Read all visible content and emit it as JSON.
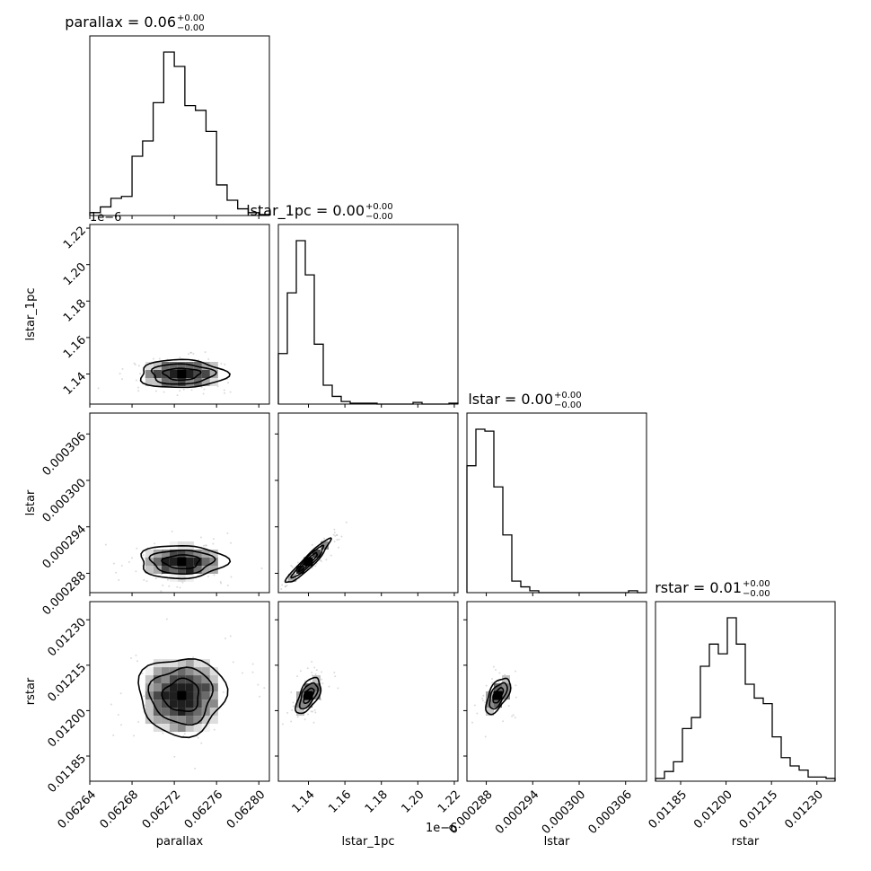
{
  "chart_data": {
    "type": "corner",
    "parameters": [
      "parallax",
      "lstar_1pc",
      "lstar",
      "rstar"
    ],
    "titles": [
      {
        "param": "parallax",
        "prefix": "parallax = 0.06",
        "upper": "+0.00",
        "lower": "−0.00"
      },
      {
        "param": "lstar_1pc",
        "prefix": "lstar_1pc = 0.00",
        "upper": "+0.00",
        "lower": "−0.00"
      },
      {
        "param": "lstar",
        "prefix": "lstar = 0.00",
        "upper": "+0.00",
        "lower": "−0.00"
      },
      {
        "param": "rstar",
        "prefix": "rstar = 0.01",
        "upper": "+0.00",
        "lower": "−0.00"
      }
    ],
    "xlabels": [
      "parallax",
      "lstar_1pc",
      "lstar",
      "rstar"
    ],
    "ylabels": [
      "",
      "lstar_1pc",
      "lstar",
      "rstar"
    ],
    "ranges": {
      "parallax": [
        0.06264,
        0.06281
      ],
      "lstar_1pc": [
        1.1235e-06,
        1.222e-06
      ],
      "lstar": [
        0.0002855,
        0.0003087
      ],
      "rstar": [
        0.011767,
        0.01236
      ]
    },
    "ticks": {
      "parallax": [
        0.06264,
        0.06268,
        0.06272,
        0.06276,
        0.0628
      ],
      "lstar_1pc": [
        1.14e-06,
        1.16e-06,
        1.18e-06,
        1.2e-06,
        1.22e-06
      ],
      "lstar": [
        0.000288,
        0.000294,
        0.0003,
        0.000306
      ],
      "rstar": [
        0.01185,
        0.012,
        0.01215,
        0.0123
      ]
    },
    "tick_labels": {
      "parallax": [
        "0.06264",
        "0.06268",
        "0.06272",
        "0.06276",
        "0.06280"
      ],
      "lstar_1pc": [
        "1.14",
        "1.16",
        "1.18",
        "1.20",
        "1.22"
      ],
      "lstar": [
        "0.000288",
        "0.000294",
        "0.000300",
        "0.000306"
      ],
      "rstar": [
        "0.01185",
        "0.01200",
        "0.01215",
        "0.01230"
      ]
    },
    "offset_text": {
      "lstar_1pc": "1e−6"
    },
    "histograms": {
      "parallax": [
        3,
        9,
        18,
        20,
        62,
        78,
        118,
        171,
        156,
        115,
        110,
        88,
        32,
        16,
        7,
        3,
        1
      ],
      "lstar_1pc": [
        59,
        130,
        191,
        151,
        70,
        22,
        9,
        3,
        1,
        1,
        1,
        0,
        0,
        0,
        0,
        2,
        0,
        0,
        0,
        1
      ],
      "lstar": [
        66,
        85,
        84,
        55,
        30,
        6,
        3,
        1,
        0,
        0,
        0,
        0,
        0,
        0,
        0,
        0,
        0,
        0,
        1,
        0
      ],
      "rstar": [
        2,
        7,
        14,
        38,
        46,
        83,
        99,
        92,
        118,
        99,
        70,
        60,
        56,
        32,
        17,
        11,
        8,
        3,
        3,
        2
      ]
    },
    "centers": {
      "parallax": 0.062727,
      "lstar_1pc": 1.14e-06,
      "lstar": 0.0002895,
      "rstar": 0.01205
    },
    "sigma": {
      "parallax": 2.15e-05,
      "lstar_1pc": 4.5e-09,
      "lstar": 1.25e-06,
      "rstar": 7.5e-05
    }
  }
}
